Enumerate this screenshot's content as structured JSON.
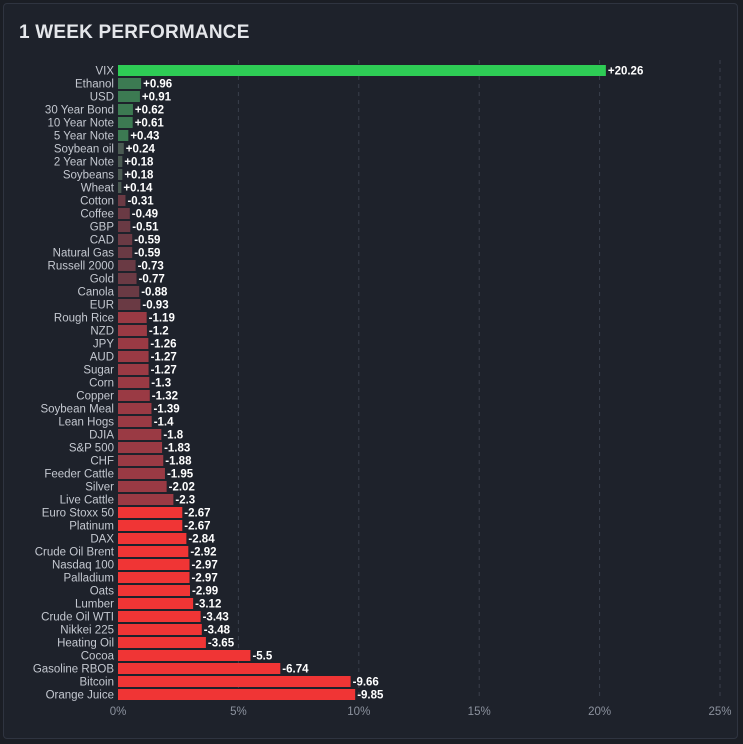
{
  "title": "1 WEEK PERFORMANCE",
  "colors": {
    "top_positive": "#2ecc55",
    "positive": "#3c7a52",
    "positive_small": "#4a5a52",
    "negative_small": "#6a3a44",
    "negative_mid": "#9a3a44",
    "negative_large": "#f03535",
    "gridline": "#3a3f4b"
  },
  "chart_data": {
    "type": "bar",
    "orientation": "horizontal",
    "title": "1 WEEK PERFORMANCE",
    "categories": [
      "VIX",
      "Ethanol",
      "USD",
      "30 Year Bond",
      "10 Year Note",
      "5 Year Note",
      "Soybean oil",
      "2 Year Note",
      "Soybeans",
      "Wheat",
      "Cotton",
      "Coffee",
      "GBP",
      "CAD",
      "Natural Gas",
      "Russell 2000",
      "Gold",
      "Canola",
      "EUR",
      "Rough Rice",
      "NZD",
      "JPY",
      "AUD",
      "Sugar",
      "Corn",
      "Copper",
      "Soybean Meal",
      "Lean Hogs",
      "DJIA",
      "S&P 500",
      "CHF",
      "Feeder Cattle",
      "Silver",
      "Live Cattle",
      "Euro Stoxx 50",
      "Platinum",
      "DAX",
      "Crude Oil Brent",
      "Nasdaq 100",
      "Palladium",
      "Oats",
      "Lumber",
      "Crude Oil WTI",
      "Nikkei 225",
      "Heating Oil",
      "Cocoa",
      "Gasoline RBOB",
      "Bitcoin",
      "Orange Juice"
    ],
    "values": [
      20.26,
      0.96,
      0.91,
      0.62,
      0.61,
      0.43,
      0.24,
      0.18,
      0.18,
      0.14,
      -0.31,
      -0.49,
      -0.51,
      -0.59,
      -0.59,
      -0.73,
      -0.77,
      -0.88,
      -0.93,
      -1.19,
      -1.2,
      -1.26,
      -1.27,
      -1.27,
      -1.3,
      -1.32,
      -1.39,
      -1.4,
      -1.8,
      -1.83,
      -1.88,
      -1.95,
      -2.02,
      -2.3,
      -2.67,
      -2.67,
      -2.84,
      -2.92,
      -2.97,
      -2.97,
      -2.99,
      -3.12,
      -3.43,
      -3.48,
      -3.65,
      -5.5,
      -6.74,
      -9.66,
      -9.85
    ],
    "value_labels": [
      "+20.26",
      "+0.96",
      "+0.91",
      "+0.62",
      "+0.61",
      "+0.43",
      "+0.24",
      "+0.18",
      "+0.18",
      "+0.14",
      "-0.31",
      "-0.49",
      "-0.51",
      "-0.59",
      "-0.59",
      "-0.73",
      "-0.77",
      "-0.88",
      "-0.93",
      "-1.19",
      "-1.2",
      "-1.26",
      "-1.27",
      "-1.27",
      "-1.3",
      "-1.32",
      "-1.39",
      "-1.4",
      "-1.8",
      "-1.83",
      "-1.88",
      "-1.95",
      "-2.02",
      "-2.3",
      "-2.67",
      "-2.67",
      "-2.84",
      "-2.92",
      "-2.97",
      "-2.97",
      "-2.99",
      "-3.12",
      "-3.43",
      "-3.48",
      "-3.65",
      "-5.5",
      "-6.74",
      "-9.66",
      "-9.85"
    ],
    "bar_length": "absolute value",
    "xlim": [
      0,
      25
    ],
    "xticks": [
      0,
      5,
      10,
      15,
      20,
      25
    ],
    "xtick_labels": [
      "0%",
      "5%",
      "10%",
      "15%",
      "20%",
      "25%"
    ],
    "grid": true,
    "grid_style": "dashed vertical",
    "legend": "none"
  }
}
